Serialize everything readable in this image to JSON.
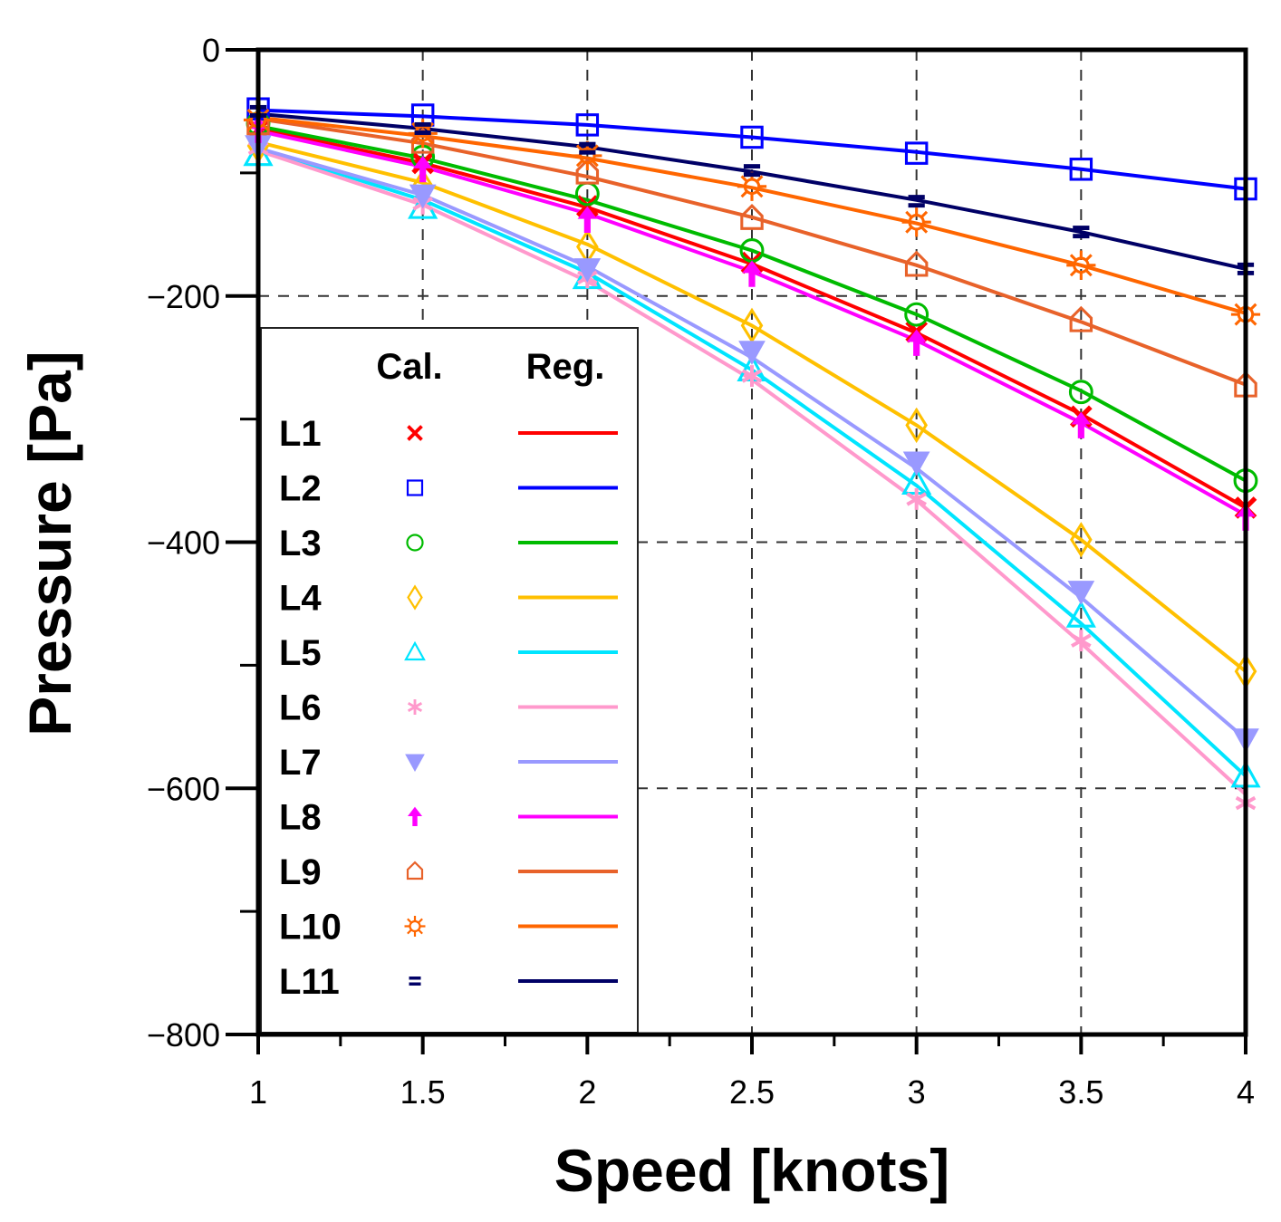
{
  "chart_data": {
    "type": "line",
    "title": "",
    "xlabel": "Speed [knots]",
    "ylabel": "Pressure [Pa]",
    "xlim": [
      1,
      4
    ],
    "ylim": [
      -800,
      0
    ],
    "xticks": [
      1,
      1.5,
      2,
      2.5,
      3,
      3.5,
      4
    ],
    "xtick_labels": [
      "1",
      "1.5",
      "2",
      "2.5",
      "3",
      "3.5",
      "4"
    ],
    "yticks": [
      0,
      -200,
      -400,
      -600,
      -800
    ],
    "ytick_labels": [
      "0",
      "−200",
      "−400",
      "−600",
      "−800"
    ],
    "grid": "dashed at x = 1.5, 2, 2.5, 3, 3.5 and y = -200, -400, -600",
    "legend": {
      "placement": "lower-left",
      "header_markers": "Cal.",
      "header_lines": "Reg."
    },
    "x": [
      1,
      1.5,
      2,
      2.5,
      3,
      3.5,
      4
    ],
    "series": [
      {
        "name": "L1",
        "color": "#ff0000",
        "marker": "x",
        "values": [
          -65,
          -92,
          -127,
          -173,
          -229,
          -298,
          -372
        ],
        "reg": [
          -64,
          -92,
          -128,
          -174,
          -230,
          -296,
          -372
        ]
      },
      {
        "name": "L2",
        "color": "#0000ff",
        "marker": "square",
        "values": [
          -48,
          -53,
          -61,
          -71,
          -84,
          -97,
          -113
        ],
        "reg": [
          -49,
          -54,
          -61,
          -71,
          -83,
          -97,
          -113
        ]
      },
      {
        "name": "L3",
        "color": "#00bb00",
        "marker": "circle",
        "values": [
          -60,
          -87,
          -117,
          -163,
          -215,
          -278,
          -350
        ],
        "reg": [
          -62,
          -88,
          -122,
          -163,
          -215,
          -277,
          -350
        ]
      },
      {
        "name": "L4",
        "color": "#ffc000",
        "marker": "diamond",
        "values": [
          -78,
          -111,
          -160,
          -224,
          -305,
          -398,
          -505
        ],
        "reg": [
          -75,
          -108,
          -158,
          -224,
          -305,
          -398,
          -505
        ]
      },
      {
        "name": "L5",
        "color": "#00e5ff",
        "marker": "triangle",
        "values": [
          -85,
          -128,
          -185,
          -260,
          -352,
          -460,
          -590
        ],
        "reg": [
          -80,
          -122,
          -181,
          -260,
          -354,
          -466,
          -590
        ]
      },
      {
        "name": "L6",
        "color": "#ff99cc",
        "marker": "asterisk",
        "values": [
          -80,
          -125,
          -185,
          -265,
          -365,
          -480,
          -612
        ],
        "reg": [
          -82,
          -126,
          -188,
          -268,
          -366,
          -482,
          -605
        ]
      },
      {
        "name": "L7",
        "color": "#9999ff",
        "marker": "triangle-down",
        "values": [
          -78,
          -118,
          -178,
          -245,
          -335,
          -440,
          -560
        ],
        "reg": [
          -80,
          -118,
          -176,
          -250,
          -340,
          -445,
          -560
        ]
      },
      {
        "name": "L8",
        "color": "#ff00ff",
        "marker": "arrow-up",
        "values": [
          -65,
          -97,
          -138,
          -182,
          -238,
          -305,
          -380
        ],
        "reg": [
          -66,
          -95,
          -133,
          -180,
          -236,
          -303,
          -378
        ]
      },
      {
        "name": "L9",
        "color": "#e8622a",
        "marker": "house",
        "values": [
          -60,
          -75,
          -100,
          -137,
          -175,
          -220,
          -273
        ],
        "reg": [
          -56,
          -76,
          -103,
          -136,
          -175,
          -221,
          -272
        ]
      },
      {
        "name": "L10",
        "color": "#ff6600",
        "marker": "sun",
        "values": [
          -57,
          -68,
          -86,
          -111,
          -140,
          -175,
          -215
        ],
        "reg": [
          -55,
          -70,
          -88,
          -112,
          -141,
          -175,
          -214
        ]
      },
      {
        "name": "L11",
        "color": "#000066",
        "marker": "equals",
        "values": [
          -50,
          -64,
          -80,
          -98,
          -123,
          -148,
          -178
        ],
        "reg": [
          -52,
          -64,
          -79,
          -99,
          -122,
          -148,
          -178
        ]
      }
    ]
  }
}
